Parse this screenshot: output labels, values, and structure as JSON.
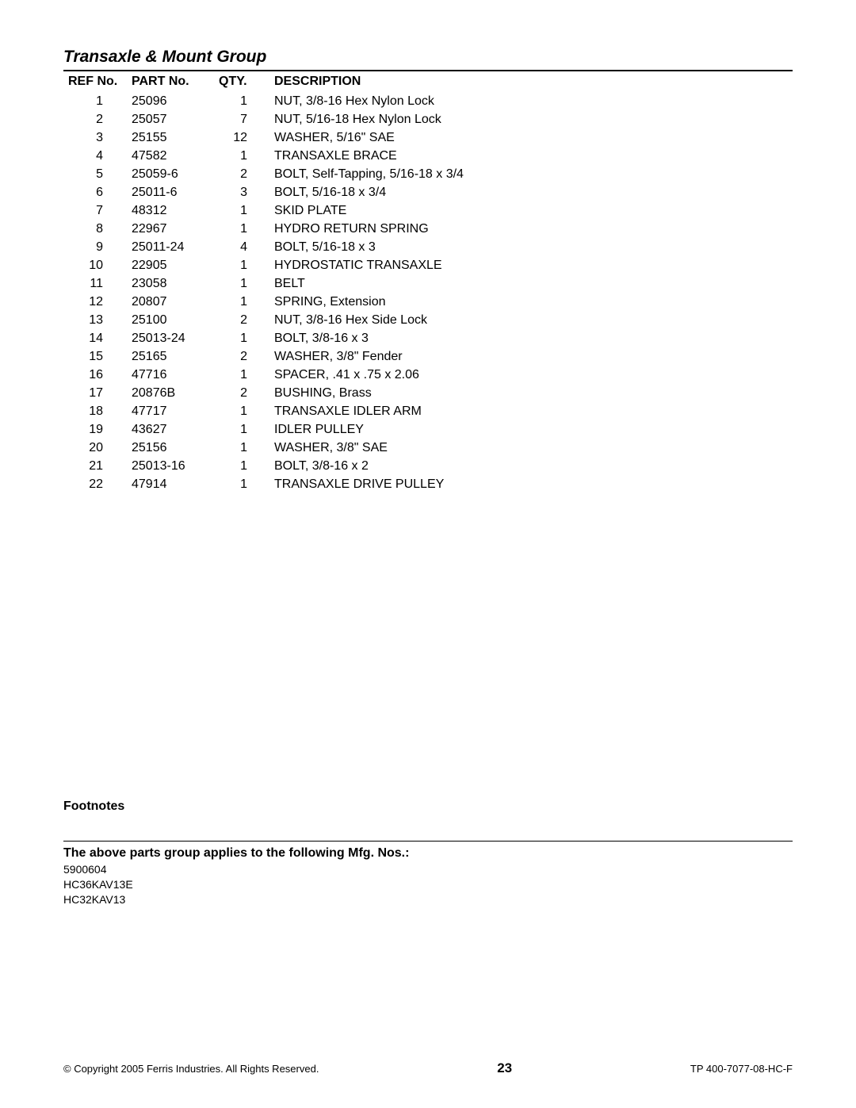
{
  "title": "Transaxle & Mount Group",
  "columns": {
    "ref": "REF No.",
    "part": "PART No.",
    "qty": "QTY.",
    "desc": "DESCRIPTION"
  },
  "rows": [
    {
      "ref": "1",
      "part": "25096",
      "qty": "1",
      "desc": "NUT, 3/8-16 Hex Nylon Lock"
    },
    {
      "ref": "2",
      "part": "25057",
      "qty": "7",
      "desc": "NUT, 5/16-18 Hex Nylon Lock"
    },
    {
      "ref": "3",
      "part": "25155",
      "qty": "12",
      "desc": "WASHER, 5/16\" SAE"
    },
    {
      "ref": "4",
      "part": "47582",
      "qty": "1",
      "desc": "TRANSAXLE BRACE"
    },
    {
      "ref": "5",
      "part": "25059-6",
      "qty": "2",
      "desc": "BOLT, Self-Tapping, 5/16-18 x 3/4"
    },
    {
      "ref": "6",
      "part": "25011-6",
      "qty": "3",
      "desc": "BOLT, 5/16-18 x 3/4"
    },
    {
      "ref": "7",
      "part": "48312",
      "qty": "1",
      "desc": "SKID PLATE"
    },
    {
      "ref": "8",
      "part": "22967",
      "qty": "1",
      "desc": "HYDRO RETURN SPRING"
    },
    {
      "ref": "9",
      "part": "25011-24",
      "qty": "4",
      "desc": "BOLT, 5/16-18 x 3"
    },
    {
      "ref": "10",
      "part": "22905",
      "qty": "1",
      "desc": "HYDROSTATIC TRANSAXLE"
    },
    {
      "ref": "11",
      "part": "23058",
      "qty": "1",
      "desc": "BELT"
    },
    {
      "ref": "12",
      "part": "20807",
      "qty": "1",
      "desc": "SPRING, Extension"
    },
    {
      "ref": "13",
      "part": "25100",
      "qty": "2",
      "desc": "NUT, 3/8-16 Hex Side Lock"
    },
    {
      "ref": "14",
      "part": "25013-24",
      "qty": "1",
      "desc": "BOLT, 3/8-16 x 3"
    },
    {
      "ref": "15",
      "part": "25165",
      "qty": "2",
      "desc": "WASHER, 3/8\" Fender"
    },
    {
      "ref": "16",
      "part": "47716",
      "qty": "1",
      "desc": "SPACER, .41 x .75 x 2.06"
    },
    {
      "ref": "17",
      "part": "20876B",
      "qty": "2",
      "desc": "BUSHING, Brass"
    },
    {
      "ref": "18",
      "part": "47717",
      "qty": "1",
      "desc": "TRANSAXLE IDLER ARM"
    },
    {
      "ref": "19",
      "part": "43627",
      "qty": "1",
      "desc": "IDLER PULLEY"
    },
    {
      "ref": "20",
      "part": "25156",
      "qty": "1",
      "desc": "WASHER, 3/8\" SAE"
    },
    {
      "ref": "21",
      "part": "25013-16",
      "qty": "1",
      "desc": "BOLT, 3/8-16 x 2"
    },
    {
      "ref": "22",
      "part": "47914",
      "qty": "1",
      "desc": "TRANSAXLE DRIVE PULLEY"
    }
  ],
  "footnotes_label": "Footnotes",
  "applies_label": "The above parts group applies to the following Mfg. Nos.:",
  "mfg_nos": [
    "5900604",
    "HC36KAV13E",
    "HC32KAV13"
  ],
  "footer": {
    "copyright": "© Copyright  2005 Ferris Industries. All Rights Reserved.",
    "page": "23",
    "doc": "TP 400-7077-08-HC-F"
  }
}
